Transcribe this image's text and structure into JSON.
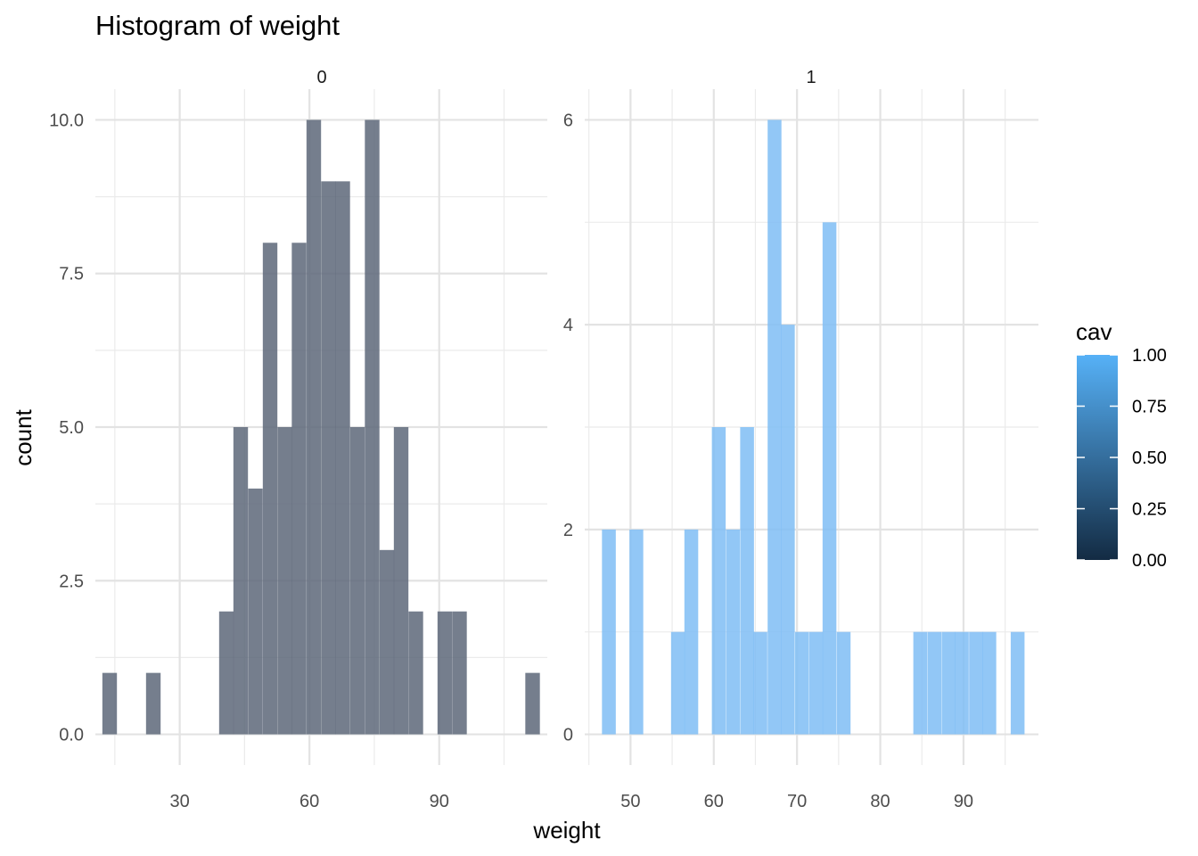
{
  "chart_data": {
    "type": "bar",
    "title": "Histogram of weight",
    "xlabel": "weight",
    "ylabel": "count",
    "legend": {
      "title": "cav",
      "placement": "right",
      "type": "colorbar",
      "range": [
        0,
        1
      ],
      "labels": [
        "1.00",
        "0.75",
        "0.50",
        "0.25",
        "0.00"
      ],
      "low_color": "#132B43",
      "high_color": "#56B1F7"
    },
    "panels": [
      {
        "strip": "0",
        "xlim": [
          10.5,
          115
        ],
        "ylim": [
          -0.5,
          10.5
        ],
        "x_ticks": [
          30,
          60,
          90
        ],
        "x_tick_labels": [
          "30",
          "60",
          "90"
        ],
        "y_ticks": [
          0,
          2.5,
          5,
          7.5,
          10
        ],
        "y_tick_labels": [
          "0.0",
          "2.5",
          "5.0",
          "7.5",
          "10.0"
        ],
        "bar_color": "#5d6779",
        "bar_width": 3.37,
        "bins": [
          {
            "x": 13.8,
            "count": 1
          },
          {
            "x": 23.9,
            "count": 1
          },
          {
            "x": 40.8,
            "count": 2
          },
          {
            "x": 44.1,
            "count": 5
          },
          {
            "x": 47.5,
            "count": 4
          },
          {
            "x": 50.9,
            "count": 8
          },
          {
            "x": 54.3,
            "count": 5
          },
          {
            "x": 57.6,
            "count": 8
          },
          {
            "x": 61.0,
            "count": 10
          },
          {
            "x": 64.4,
            "count": 9
          },
          {
            "x": 67.7,
            "count": 9
          },
          {
            "x": 71.1,
            "count": 5
          },
          {
            "x": 74.5,
            "count": 10
          },
          {
            "x": 77.9,
            "count": 3
          },
          {
            "x": 81.2,
            "count": 5
          },
          {
            "x": 84.6,
            "count": 2
          },
          {
            "x": 91.3,
            "count": 2
          },
          {
            "x": 94.7,
            "count": 2
          },
          {
            "x": 111.6,
            "count": 1
          }
        ]
      },
      {
        "strip": "1",
        "xlim": [
          44.5,
          99
        ],
        "ylim": [
          -0.3,
          6.3
        ],
        "x_ticks": [
          50,
          60,
          70,
          80,
          90
        ],
        "x_tick_labels": [
          "50",
          "60",
          "70",
          "80",
          "90"
        ],
        "y_ticks": [
          0,
          2,
          4,
          6
        ],
        "y_tick_labels": [
          "0",
          "2",
          "4",
          "6"
        ],
        "bar_color": "#7fbdf5",
        "bar_width": 1.66,
        "bins": [
          {
            "x": 47.4,
            "count": 2
          },
          {
            "x": 50.7,
            "count": 2
          },
          {
            "x": 55.7,
            "count": 1
          },
          {
            "x": 57.3,
            "count": 2
          },
          {
            "x": 60.6,
            "count": 3
          },
          {
            "x": 62.3,
            "count": 2
          },
          {
            "x": 64.0,
            "count": 3
          },
          {
            "x": 65.6,
            "count": 1
          },
          {
            "x": 67.3,
            "count": 6
          },
          {
            "x": 68.9,
            "count": 4
          },
          {
            "x": 70.6,
            "count": 1
          },
          {
            "x": 72.3,
            "count": 1
          },
          {
            "x": 73.9,
            "count": 5
          },
          {
            "x": 75.6,
            "count": 1
          },
          {
            "x": 84.8,
            "count": 1
          },
          {
            "x": 86.5,
            "count": 1
          },
          {
            "x": 88.2,
            "count": 1
          },
          {
            "x": 89.8,
            "count": 1
          },
          {
            "x": 91.5,
            "count": 1
          },
          {
            "x": 93.1,
            "count": 1
          },
          {
            "x": 96.5,
            "count": 1
          }
        ]
      }
    ]
  }
}
